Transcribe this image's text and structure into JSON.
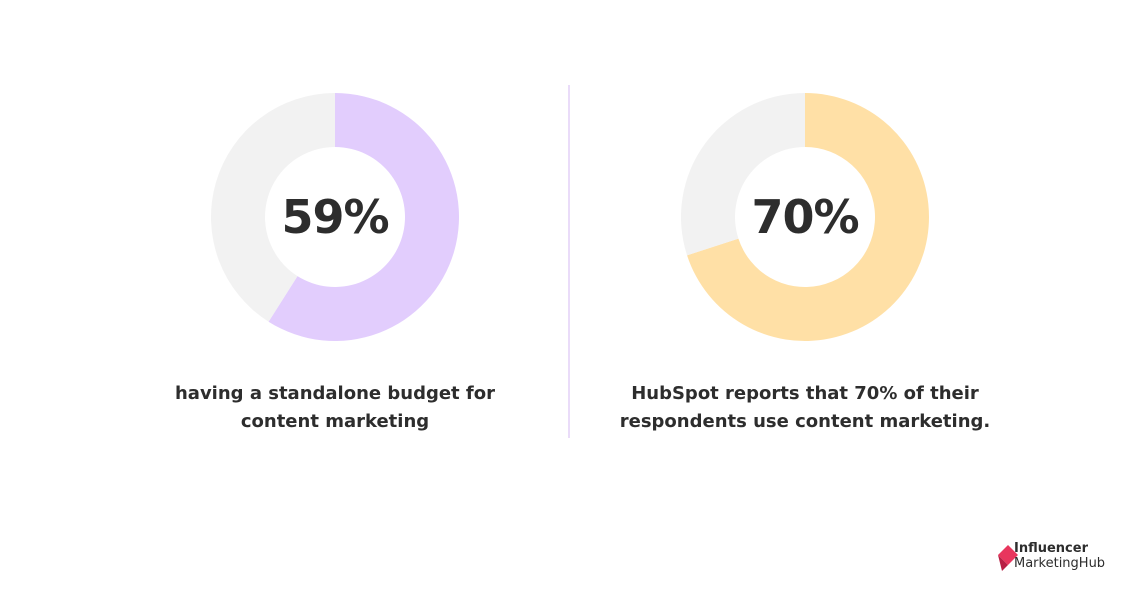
{
  "chart_data": [
    {
      "type": "pie",
      "value_label": "59%",
      "slices": [
        {
          "label": "having a standalone budget for content marketing",
          "value": 59
        },
        {
          "label": "",
          "value": 41
        }
      ],
      "caption_lines": [
        "having a standalone budget for",
        "content marketing"
      ]
    },
    {
      "type": "pie",
      "value_label": "70%",
      "slices": [
        {
          "label": "use content marketing",
          "value": 70
        },
        {
          "label": "",
          "value": 30
        }
      ],
      "caption_lines": [
        "HubSpot reports that 70% of their",
        "respondents use content marketing."
      ]
    }
  ],
  "colors": {
    "left_fill": "#e2cdfd",
    "right_fill": "#ffe0a6",
    "remainder": "#f2f2f2",
    "divider": "#eadcf9",
    "brand": "#e8365d"
  },
  "logo": {
    "line1": "Influencer",
    "line2": "MarketingHub"
  }
}
